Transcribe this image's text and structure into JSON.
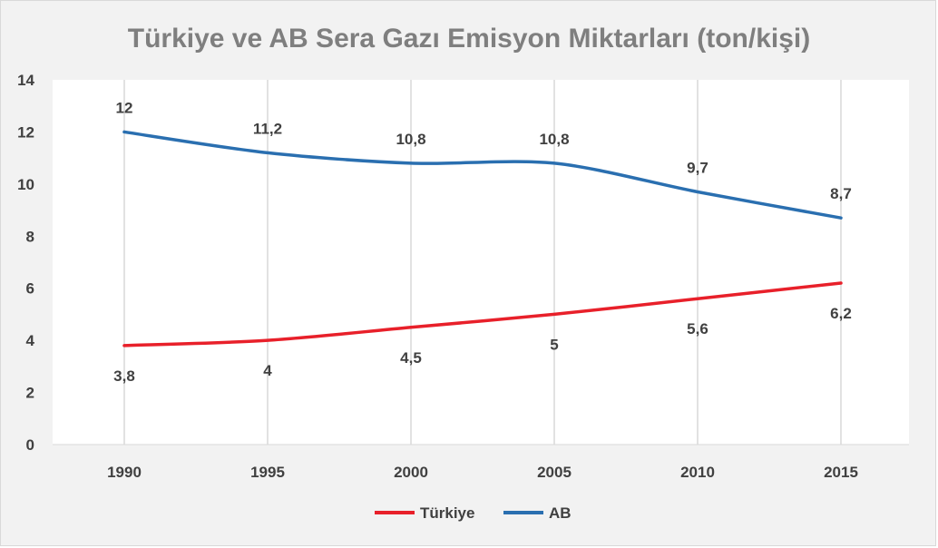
{
  "chart_data": {
    "type": "line",
    "title": "Türkiye ve AB Sera Gazı Emisyon Miktarları (ton/kişi)",
    "categories": [
      "1990",
      "1995",
      "2000",
      "2005",
      "2010",
      "2015"
    ],
    "y_ticks": [
      "0",
      "2",
      "4",
      "6",
      "8",
      "10",
      "12",
      "14"
    ],
    "ylim": [
      0,
      14
    ],
    "series": [
      {
        "name": "Türkiye",
        "color": "#e8202a",
        "values": [
          3.8,
          4,
          4.5,
          5,
          5.6,
          6.2
        ],
        "labels": [
          "3,8",
          "4",
          "4,5",
          "5",
          "5,6",
          "6,2"
        ],
        "label_position": "below"
      },
      {
        "name": "AB",
        "color": "#2a6fb0",
        "values": [
          12,
          11.2,
          10.8,
          10.8,
          9.7,
          8.7
        ],
        "labels": [
          "12",
          "11,2",
          "10,8",
          "10,8",
          "9,7",
          "8,7"
        ],
        "label_position": "above"
      }
    ],
    "grid": "vertical",
    "legend_position": "bottom"
  }
}
